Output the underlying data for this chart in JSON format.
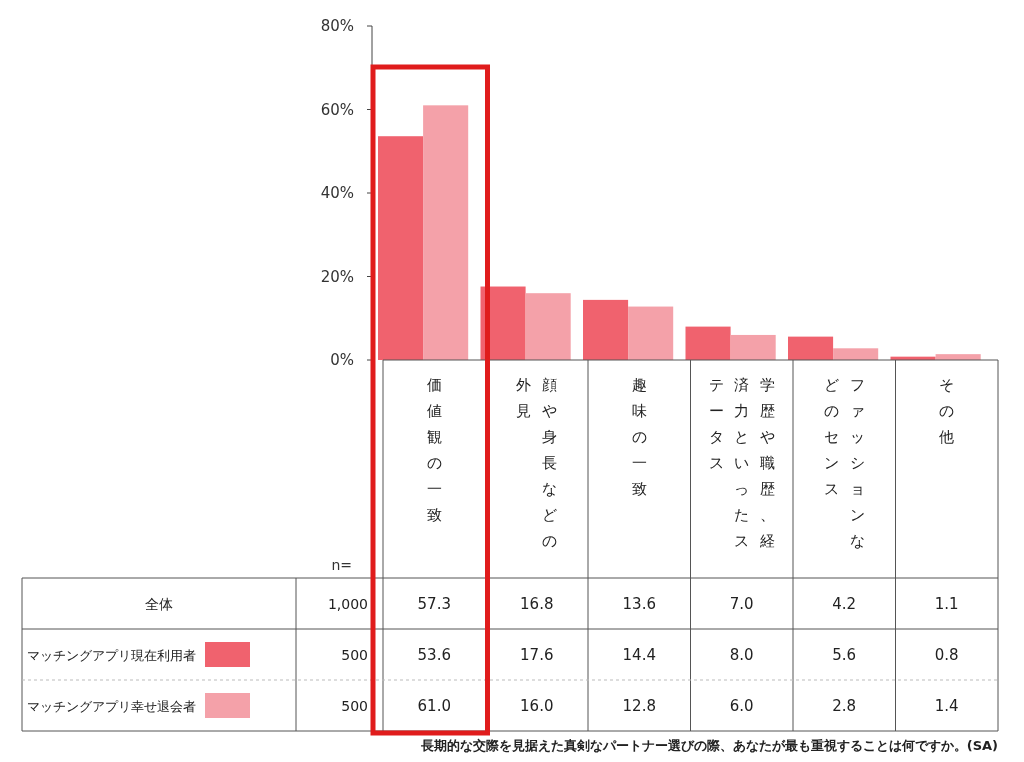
{
  "chart_data": {
    "type": "bar",
    "categories": [
      "価値観の一致",
      "顔や身長などの外見",
      "趣味の一致",
      "学歴や職歴、経済力といったステータス",
      "ファッションなどのセンス",
      "その他"
    ],
    "series": [
      {
        "name": "マッチングアプリ現在利用者",
        "color": "#f0626e",
        "values": [
          53.6,
          17.6,
          14.4,
          8.0,
          5.6,
          0.8
        ],
        "value_labels": [
          "53.6",
          "17.6",
          "14.4",
          "8.0",
          "5.6",
          "0.8"
        ]
      },
      {
        "name": "マッチングアプリ幸せ退会者",
        "color": "#f4a1a9",
        "values": [
          61.0,
          16.0,
          12.8,
          6.0,
          2.8,
          1.4
        ],
        "value_labels": [
          "61.0",
          "16.0",
          "12.8",
          "6.0",
          "2.8",
          "1.4"
        ]
      }
    ],
    "ylim": [
      0,
      80
    ],
    "yticks": [
      {
        "value": 0,
        "label": "0%"
      },
      {
        "value": 20,
        "label": "20%"
      },
      {
        "value": 40,
        "label": "40%"
      },
      {
        "value": 60,
        "label": "60%"
      },
      {
        "value": 80,
        "label": "80%"
      }
    ],
    "legend": "bottom left",
    "data_labels": true,
    "annotations": [
      "n=",
      "全体",
      "1,000",
      "57.3",
      "16.8",
      "13.6",
      "7.0",
      "4.2",
      "1.1",
      "500",
      "500",
      "長期的な交際を見据えた真剣なパートナー選びの際、あなたが最も重視することは何ですか。(SA)"
    ]
  }
}
